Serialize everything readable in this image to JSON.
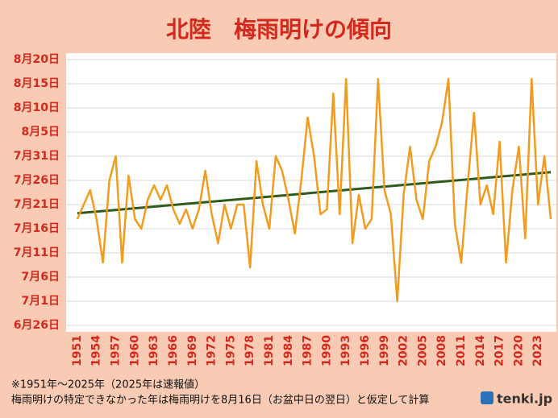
{
  "chart_data": {
    "type": "line",
    "title": "北陸　梅雨明けの傾向",
    "notes": [
      "※1951年～2025年（2025年は速報値）",
      "梅雨明けの特定できなかった年は梅雨明けを8月16日（お盆中日の翌日）と仮定して計算"
    ],
    "brand": "tenki.jp",
    "x": [
      1951,
      1952,
      1953,
      1954,
      1955,
      1956,
      1957,
      1958,
      1959,
      1960,
      1961,
      1962,
      1963,
      1964,
      1965,
      1966,
      1967,
      1968,
      1969,
      1970,
      1971,
      1972,
      1973,
      1974,
      1975,
      1976,
      1977,
      1978,
      1979,
      1980,
      1981,
      1982,
      1983,
      1984,
      1985,
      1986,
      1987,
      1988,
      1989,
      1990,
      1991,
      1992,
      1993,
      1994,
      1995,
      1996,
      1997,
      1998,
      1999,
      2000,
      2001,
      2002,
      2003,
      2004,
      2005,
      2006,
      2007,
      2008,
      2009,
      2010,
      2011,
      2012,
      2013,
      2014,
      2015,
      2016,
      2017,
      2018,
      2019,
      2020,
      2021,
      2022,
      2023,
      2024,
      2025
    ],
    "series": [
      {
        "color": "#f29c1f",
        "values": [
          18,
          21,
          24,
          18,
          9,
          26,
          31,
          9,
          27,
          18,
          16,
          22,
          25,
          22,
          25,
          20,
          17,
          20,
          16,
          20,
          28,
          19,
          13,
          21,
          16,
          21,
          21,
          8,
          30,
          21,
          16,
          31,
          28,
          22,
          15,
          26,
          39,
          31,
          19,
          20,
          44,
          19,
          47,
          13,
          23,
          16,
          18,
          47,
          24,
          19,
          1,
          23,
          33,
          22,
          18,
          30,
          33,
          38,
          47,
          17,
          9,
          25,
          40,
          21,
          25,
          19,
          34,
          9,
          24,
          33,
          14,
          47,
          21,
          31,
          18
        ]
      }
    ],
    "trendline": {
      "x": [
        1951,
        2025
      ],
      "values": [
        19.2,
        27.7
      ],
      "color": "#2e5a1c"
    },
    "xlim": [
      1950,
      2026
    ],
    "xticks": [
      1951,
      1954,
      1957,
      1960,
      1963,
      1966,
      1969,
      1972,
      1975,
      1978,
      1981,
      1984,
      1987,
      1990,
      1993,
      1996,
      1999,
      2002,
      2005,
      2008,
      2011,
      2014,
      2017,
      2020,
      2023
    ],
    "ylim": [
      -4,
      51
    ],
    "yticks": [
      {
        "value": -4,
        "label": "6月26日"
      },
      {
        "value": 1,
        "label": "7月1日"
      },
      {
        "value": 6,
        "label": "7月6日"
      },
      {
        "value": 11,
        "label": "7月11日"
      },
      {
        "value": 16,
        "label": "7月16日"
      },
      {
        "value": 21,
        "label": "7月21日"
      },
      {
        "value": 26,
        "label": "7月26日"
      },
      {
        "value": 31,
        "label": "7月31日"
      },
      {
        "value": 36,
        "label": "8月5日"
      },
      {
        "value": 41,
        "label": "8月10日"
      },
      {
        "value": 46,
        "label": "8月15日"
      },
      {
        "value": 51,
        "label": "8月20日"
      }
    ],
    "grid": true
  }
}
